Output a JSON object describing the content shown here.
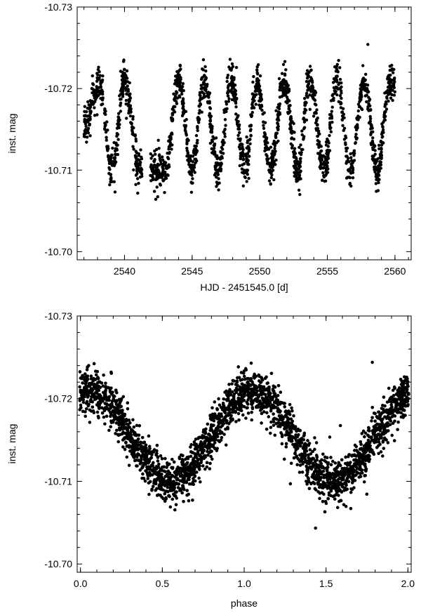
{
  "chart_data": [
    {
      "type": "scatter",
      "title": "",
      "xlabel": "HJD - 2451545.0 [d]",
      "ylabel": "inst. mag",
      "xlim": [
        2536.5,
        2561.2
      ],
      "ylim": [
        -10.73,
        -10.699
      ],
      "y_inverted": true,
      "x_ticks": [
        2540,
        2545,
        2550,
        2555,
        2560
      ],
      "x_tick_labels": [
        "2540",
        "2545",
        "2550",
        "2555",
        "2560"
      ],
      "y_ticks": [
        -10.73,
        -10.72,
        -10.71,
        -10.7
      ],
      "y_tick_labels": [
        "-10.73",
        "-10.72",
        "-10.71",
        "-10.70"
      ],
      "grid": false,
      "series": [
        {
          "marker_color": "#000000",
          "approximate_model": {
            "period_days": 2.0,
            "mean_mag": -10.7155,
            "amplitude_mag": 0.0055,
            "max_brightness_hjd": [
              2538.1,
              2540.0,
              2544.0,
              2545.9,
              2547.9,
              2549.8,
              2551.8,
              2553.7,
              2555.7,
              2557.7,
              2559.6
            ],
            "min_brightness_hjd": [
              2539.1,
              2541.1,
              2543.0,
              2545.0,
              2546.9,
              2548.9,
              2550.8,
              2552.8,
              2554.8,
              2556.7,
              2558.7
            ]
          },
          "segments": [
            [
              2537.0,
              2541.3
            ],
            [
              2541.9,
              2560.0
            ]
          ]
        }
      ]
    },
    {
      "type": "scatter",
      "title": "",
      "xlabel": "phase",
      "ylabel": "inst. mag",
      "xlim": [
        -0.02,
        2.02
      ],
      "ylim": [
        -10.73,
        -10.699
      ],
      "y_inverted": true,
      "x_ticks": [
        0.0,
        0.5,
        1.0,
        1.5,
        2.0
      ],
      "x_tick_labels": [
        "0.0",
        "0.5",
        "1.0",
        "1.5",
        "2.0"
      ],
      "y_ticks": [
        -10.73,
        -10.72,
        -10.71,
        -10.7
      ],
      "y_tick_labels": [
        "-10.73",
        "-10.72",
        "-10.71",
        "-10.70"
      ],
      "grid": false,
      "series": [
        {
          "marker_color": "#000000",
          "approximate_model": {
            "phase_of_max_brightness": [
              0.05,
              1.05
            ],
            "phase_of_min_brightness": [
              0.55,
              1.55
            ],
            "mean_mag": -10.7155,
            "amplitude_mag": 0.0055
          }
        }
      ]
    }
  ]
}
